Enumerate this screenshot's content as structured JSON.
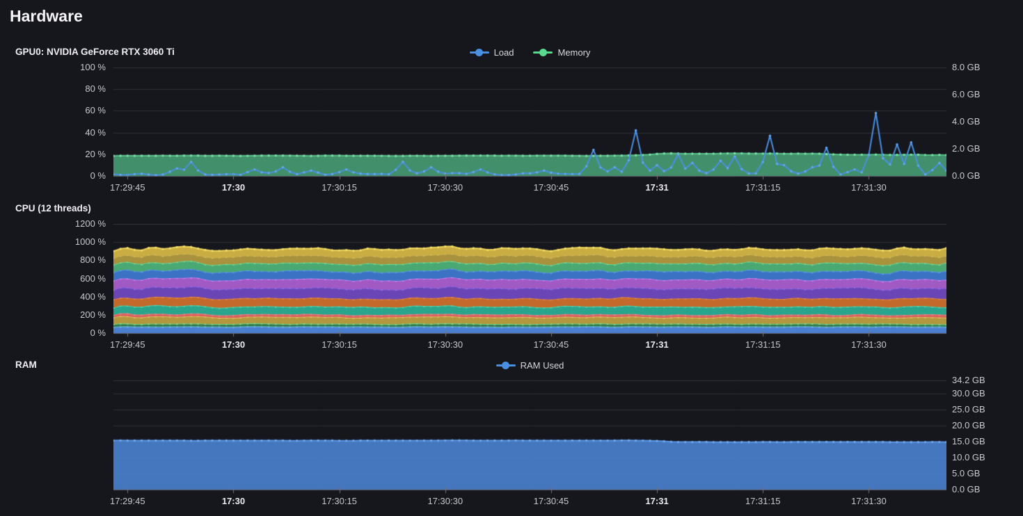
{
  "page": {
    "title": "Hardware",
    "background": "#16161d"
  },
  "colors": {
    "grid": "#31313a",
    "axis_line": "#5a5a64",
    "tick": "#73737d",
    "label": "#c9c9d0",
    "accent_blue": "#4a90e2",
    "accent_green": "#5fd196"
  },
  "time_axis": {
    "min": 0,
    "max": 118,
    "ticks": [
      {
        "t": 2,
        "label": "17:29:45",
        "bold": false
      },
      {
        "t": 17,
        "label": "17:30",
        "bold": true
      },
      {
        "t": 32,
        "label": "17:30:15",
        "bold": false
      },
      {
        "t": 47,
        "label": "17:30:30",
        "bold": false
      },
      {
        "t": 62,
        "label": "17:30:45",
        "bold": false
      },
      {
        "t": 77,
        "label": "17:31",
        "bold": true
      },
      {
        "t": 92,
        "label": "17:31:15",
        "bold": false
      },
      {
        "t": 107,
        "label": "17:31:30",
        "bold": false
      }
    ]
  },
  "chart_data": [
    {
      "id": "gpu",
      "type": "line-area",
      "title": "GPU0: NVIDIA GeForce RTX 3060 Ti",
      "legend": [
        {
          "label": "Load",
          "color": "#4a90e2"
        },
        {
          "label": "Memory",
          "color": "#57d98f"
        }
      ],
      "left_axis": {
        "min": 0,
        "max": 100,
        "unit": "%",
        "ticks": [
          {
            "v": 0,
            "label": "0 %"
          },
          {
            "v": 20,
            "label": "20 %"
          },
          {
            "v": 40,
            "label": "40 %"
          },
          {
            "v": 60,
            "label": "60 %"
          },
          {
            "v": 80,
            "label": "80 %"
          },
          {
            "v": 100,
            "label": "100 %"
          }
        ]
      },
      "right_axis": {
        "min": 0,
        "max": 8,
        "unit": "GB",
        "ticks": [
          {
            "v": 0,
            "label": "0.0 GB"
          },
          {
            "v": 2,
            "label": "2.0 GB"
          },
          {
            "v": 4,
            "label": "4.0 GB"
          },
          {
            "v": 6,
            "label": "6.0 GB"
          },
          {
            "v": 8,
            "label": "8.0 GB"
          }
        ]
      },
      "grid": "left",
      "series": [
        {
          "name": "Memory",
          "axis": "right",
          "style": "area",
          "seed": 22,
          "color": "#58c08a",
          "dot_color": "#79e8ab",
          "fill_color": "rgba(80,180,130,0.78)",
          "jitter": 0.02,
          "keyframes": [
            [
              0,
              1.49
            ],
            [
              73,
              1.49
            ],
            [
              78,
              1.65
            ],
            [
              100,
              1.65
            ],
            [
              104,
              1.56
            ],
            [
              118,
              1.56
            ]
          ],
          "summary": "GPU memory steady ~1.5 GB, rising to ~1.65 GB between 17:30:57 and 17:31:25"
        },
        {
          "name": "Load",
          "axis": "left",
          "style": "line",
          "seed": 11,
          "color": "#4a90e2",
          "dot_color": "#66a8f2",
          "baseline": 1.8,
          "jitter": 1.4,
          "spikes": [
            [
              9,
              7
            ],
            [
              11,
              13
            ],
            [
              20,
              6
            ],
            [
              24,
              8
            ],
            [
              28,
              5
            ],
            [
              33,
              6
            ],
            [
              41,
              13
            ],
            [
              45,
              8
            ],
            [
              52,
              6
            ],
            [
              61,
              5
            ],
            [
              68,
              24
            ],
            [
              71,
              8
            ],
            [
              74,
              42
            ],
            [
              77,
              10
            ],
            [
              80,
              20
            ],
            [
              82,
              12
            ],
            [
              86,
              14
            ],
            [
              88,
              18
            ],
            [
              93,
              37
            ],
            [
              95,
              10
            ],
            [
              99,
              8
            ],
            [
              101,
              26
            ],
            [
              105,
              6
            ],
            [
              108,
              58
            ],
            [
              111,
              29
            ],
            [
              113,
              31
            ],
            [
              117,
              12
            ]
          ],
          "summary": "GPU load idles 0-5% with spikes: ~42% at 17:30:57, ~37% at 17:31:16, ~26% at 17:31:24, ~58% at 17:31:31, ~30% at 17:31:34-36"
        }
      ]
    },
    {
      "id": "cpu",
      "type": "stacked-area",
      "title": "CPU (12 threads)",
      "legend": [],
      "left_axis": {
        "min": 0,
        "max": 1200,
        "unit": "%",
        "ticks": [
          {
            "v": 0,
            "label": "0 %"
          },
          {
            "v": 200,
            "label": "200 %"
          },
          {
            "v": 400,
            "label": "400 %"
          },
          {
            "v": 600,
            "label": "600 %"
          },
          {
            "v": 800,
            "label": "800 %"
          },
          {
            "v": 1000,
            "label": "1000 %"
          },
          {
            "v": 1200,
            "label": "1200 %"
          }
        ]
      },
      "grid": "left",
      "stacked": true,
      "summary": "12 stacked per-thread load bands, total hovering ~900-1000%",
      "series": [
        {
          "name": "thread-1",
          "axis": "left",
          "style": "stack",
          "seed": 31,
          "baseline": 66,
          "jitter": 6,
          "fill_color": "#4a7fd0",
          "color": "#5e96e8",
          "dot_color": "#6ba2ef"
        },
        {
          "name": "thread-2",
          "axis": "left",
          "style": "stack",
          "seed": 32,
          "baseline": 36,
          "jitter": 5,
          "fill_color": "rgba(80,200,120,0.55)",
          "color": "#62d986",
          "dot_color": "#7ce69b"
        },
        {
          "name": "thread-3",
          "axis": "left",
          "style": "stack",
          "seed": 33,
          "baseline": 74,
          "jitter": 10,
          "fill_color": "#b3973f",
          "color": "#d8bc55",
          "dot_color": "#e6cb62"
        },
        {
          "name": "thread-4",
          "axis": "left",
          "style": "stack",
          "seed": 34,
          "baseline": 28,
          "jitter": 6,
          "fill_color": "#d95f5f",
          "color": "#f07777",
          "dot_color": "#f78a8a"
        },
        {
          "name": "thread-5",
          "axis": "left",
          "style": "stack",
          "seed": 35,
          "baseline": 88,
          "jitter": 10,
          "fill_color": "#2aa58d",
          "color": "#3fd4b0",
          "dot_color": "#54e0bd"
        },
        {
          "name": "thread-6",
          "axis": "left",
          "style": "stack",
          "seed": 36,
          "baseline": 90,
          "jitter": 10,
          "fill_color": "#c2692b",
          "color": "#e28339",
          "dot_color": "#ee9348"
        },
        {
          "name": "thread-7",
          "axis": "left",
          "style": "stack",
          "seed": 37,
          "baseline": 112,
          "jitter": 12,
          "fill_color": "#6a45b5",
          "color": "#8660dd",
          "dot_color": "#9571e8"
        },
        {
          "name": "thread-8",
          "axis": "left",
          "style": "stack",
          "seed": 38,
          "baseline": 98,
          "jitter": 10,
          "fill_color": "#a159c4",
          "color": "#c377e6",
          "dot_color": "#d088ef"
        },
        {
          "name": "thread-9",
          "axis": "left",
          "style": "stack",
          "seed": 39,
          "baseline": 90,
          "jitter": 10,
          "fill_color": "#3b72c4",
          "color": "#548fe0",
          "dot_color": "#639ceb"
        },
        {
          "name": "thread-10",
          "axis": "left",
          "style": "stack",
          "seed": 40,
          "baseline": 86,
          "jitter": 9,
          "fill_color": "#4aa873",
          "color": "#63d392",
          "dot_color": "#74e0a1"
        },
        {
          "name": "thread-11",
          "axis": "left",
          "style": "stack",
          "seed": 41,
          "baseline": 82,
          "jitter": 9,
          "fill_color": "#a8923e",
          "color": "#c9ae50",
          "dot_color": "#d7bc5d"
        },
        {
          "name": "thread-12",
          "axis": "left",
          "style": "stack",
          "seed": 42,
          "baseline": 76,
          "jitter": 9,
          "fill_color": "#c9ad42",
          "color": "#eed65c",
          "dot_color": "#f6e06b"
        }
      ]
    },
    {
      "id": "ram",
      "type": "area",
      "title": "RAM",
      "legend": [
        {
          "label": "RAM Used",
          "color": "#4a90e2"
        }
      ],
      "right_axis": {
        "min": 0,
        "max": 34.2,
        "unit": "GB",
        "ticks": [
          {
            "v": 0,
            "label": "0.0 GB"
          },
          {
            "v": 5,
            "label": "5.0 GB"
          },
          {
            "v": 10,
            "label": "10.0 GB"
          },
          {
            "v": 15,
            "label": "15.0 GB"
          },
          {
            "v": 20,
            "label": "20.0 GB"
          },
          {
            "v": 25,
            "label": "25.0 GB"
          },
          {
            "v": 30,
            "label": "30.0 GB"
          },
          {
            "v": 34.2,
            "label": "34.2 GB"
          }
        ]
      },
      "grid": "right",
      "series": [
        {
          "name": "RAM Used",
          "axis": "right",
          "style": "area",
          "seed": 77,
          "color": "#5c99e8",
          "dot_color": "#6fa9f2",
          "fill_color": "rgba(74,128,204,0.92)",
          "jitter": 0.06,
          "keyframes": [
            [
              0,
              15.35
            ],
            [
              76,
              15.35
            ],
            [
              80,
              14.9
            ],
            [
              118,
              14.9
            ]
          ],
          "summary": "RAM used ~15.35 GB of 34.2 GB, stepping down to ~14.9 GB just after 17:31"
        }
      ]
    }
  ]
}
